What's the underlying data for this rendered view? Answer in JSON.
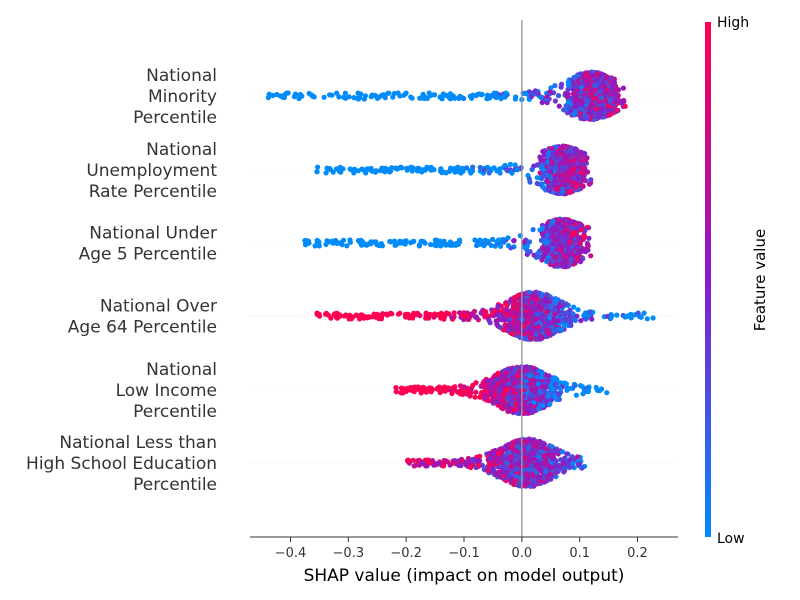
{
  "chart_data": {
    "type": "scatter",
    "title": "",
    "xlabel": "SHAP value (impact on model output)",
    "ylabel": "",
    "xlim": [
      -0.47,
      0.27
    ],
    "x_ticks": [
      -0.4,
      -0.3,
      -0.2,
      -0.1,
      0.0,
      0.1,
      0.2
    ],
    "x_tick_labels": [
      "−0.4",
      "−0.3",
      "−0.2",
      "−0.1",
      "0.0",
      "0.1",
      "0.2"
    ],
    "zero_line": 0.0,
    "grid": false,
    "features": [
      {
        "label_lines": [
          "National",
          "Minority",
          "Percentile"
        ],
        "min": -0.44,
        "max": 0.18,
        "peak": 0.12,
        "trend": 1
      },
      {
        "label_lines": [
          "National",
          "Unemployment",
          "Rate Percentile"
        ],
        "min": -0.36,
        "max": 0.12,
        "peak": 0.07,
        "trend": 1
      },
      {
        "label_lines": [
          "National Under",
          "Age 5 Percentile"
        ],
        "min": -0.38,
        "max": 0.12,
        "peak": 0.07,
        "trend": 1
      },
      {
        "label_lines": [
          "National Over",
          "Age 64 Percentile"
        ],
        "min": -0.36,
        "max": 0.23,
        "peak": 0.02,
        "trend": -1
      },
      {
        "label_lines": [
          "National",
          "Low Income",
          "Percentile"
        ],
        "min": -0.22,
        "max": 0.15,
        "peak": 0.0,
        "trend": -1
      },
      {
        "label_lines": [
          "National Less than",
          "High School Education",
          "Percentile"
        ],
        "min": -0.2,
        "max": 0.11,
        "peak": 0.01,
        "trend": -0.3
      }
    ],
    "colorbar": {
      "label": "Feature value",
      "high_label": "High",
      "low_label": "Low",
      "high_color": "#ff0052",
      "low_color": "#008bfb"
    }
  }
}
